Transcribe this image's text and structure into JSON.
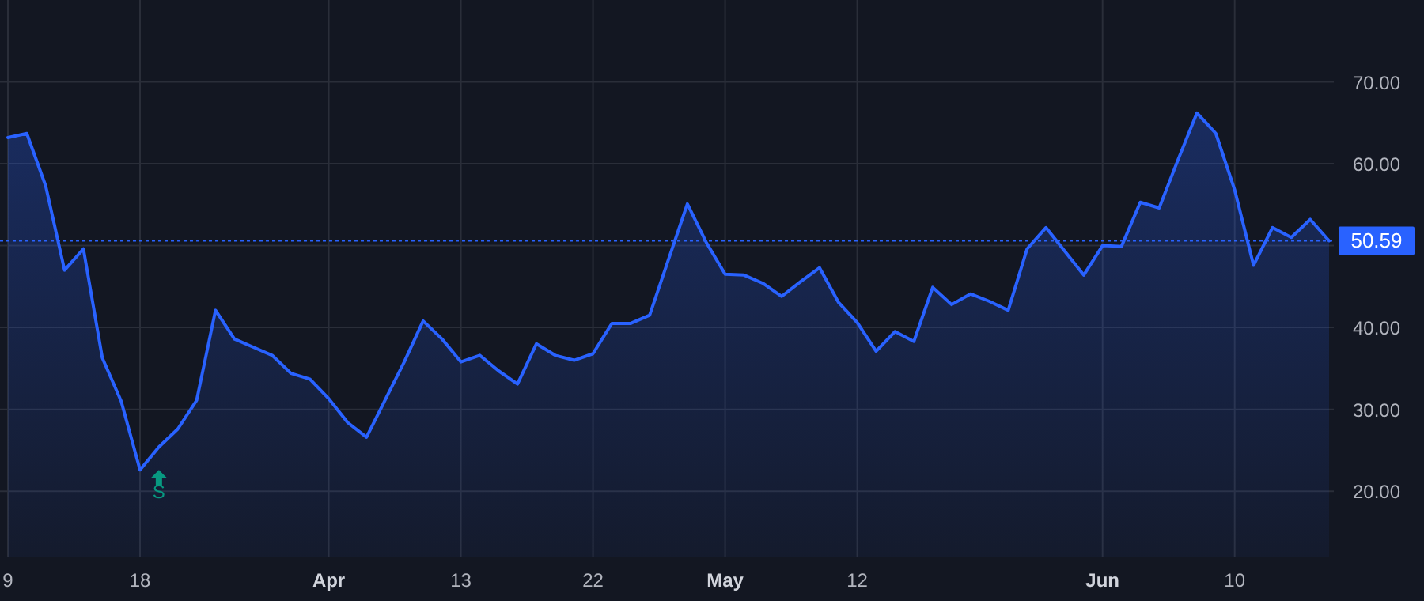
{
  "chart_data": {
    "type": "area",
    "categories": [
      "9",
      null,
      null,
      null,
      null,
      null,
      null,
      "18",
      null,
      null,
      null,
      null,
      null,
      null,
      null,
      null,
      null,
      "Apr",
      null,
      null,
      null,
      null,
      null,
      null,
      "13",
      null,
      null,
      null,
      null,
      null,
      null,
      "22",
      null,
      null,
      null,
      null,
      null,
      null,
      "May",
      null,
      null,
      null,
      null,
      null,
      null,
      "12",
      null,
      null,
      null,
      null,
      null,
      null,
      null,
      null,
      null,
      null,
      null,
      null,
      "Jun",
      null,
      null,
      null,
      null,
      null,
      null,
      "10",
      null,
      null,
      null,
      null,
      null
    ],
    "series": [
      {
        "color": "#2962ff",
        "values": [
          63.2,
          63.7,
          57.3,
          47.0,
          49.6,
          36.3,
          31.0,
          22.6,
          25.4,
          27.6,
          31.1,
          42.1,
          38.6,
          37.6,
          36.6,
          34.4,
          33.7,
          31.3,
          28.4,
          26.6,
          31.2,
          35.8,
          40.8,
          38.6,
          35.8,
          36.6,
          34.7,
          33.1,
          38.0,
          36.6,
          36.0,
          36.8,
          40.5,
          40.5,
          41.5,
          48.3,
          55.1,
          50.4,
          46.5,
          46.4,
          45.4,
          43.8,
          45.6,
          47.3,
          43.1,
          40.6,
          37.1,
          39.5,
          38.3,
          44.9,
          42.8,
          44.1,
          43.2,
          42.1,
          49.6,
          52.2,
          49.3,
          46.4,
          50.0,
          49.9,
          55.3,
          54.6,
          60.5,
          66.2,
          63.7,
          56.8,
          47.6,
          52.2,
          51.0,
          53.2,
          50.59
        ]
      }
    ],
    "ylim": [
      12,
      80
    ],
    "yticks": [
      {
        "value": 20,
        "label": "20.00"
      },
      {
        "value": 30,
        "label": "30.00"
      },
      {
        "value": 40,
        "label": "40.00"
      },
      {
        "value": 50,
        "label": null
      },
      {
        "value": 60,
        "label": "60.00"
      },
      {
        "value": 70,
        "label": "70.00"
      }
    ],
    "ref_lines": [
      {
        "axis": "y",
        "value": 50.59,
        "label": "50.59",
        "color": "#2962ff",
        "line_style": "dotted"
      }
    ],
    "annotations": [
      "S"
    ],
    "grid": true
  }
}
